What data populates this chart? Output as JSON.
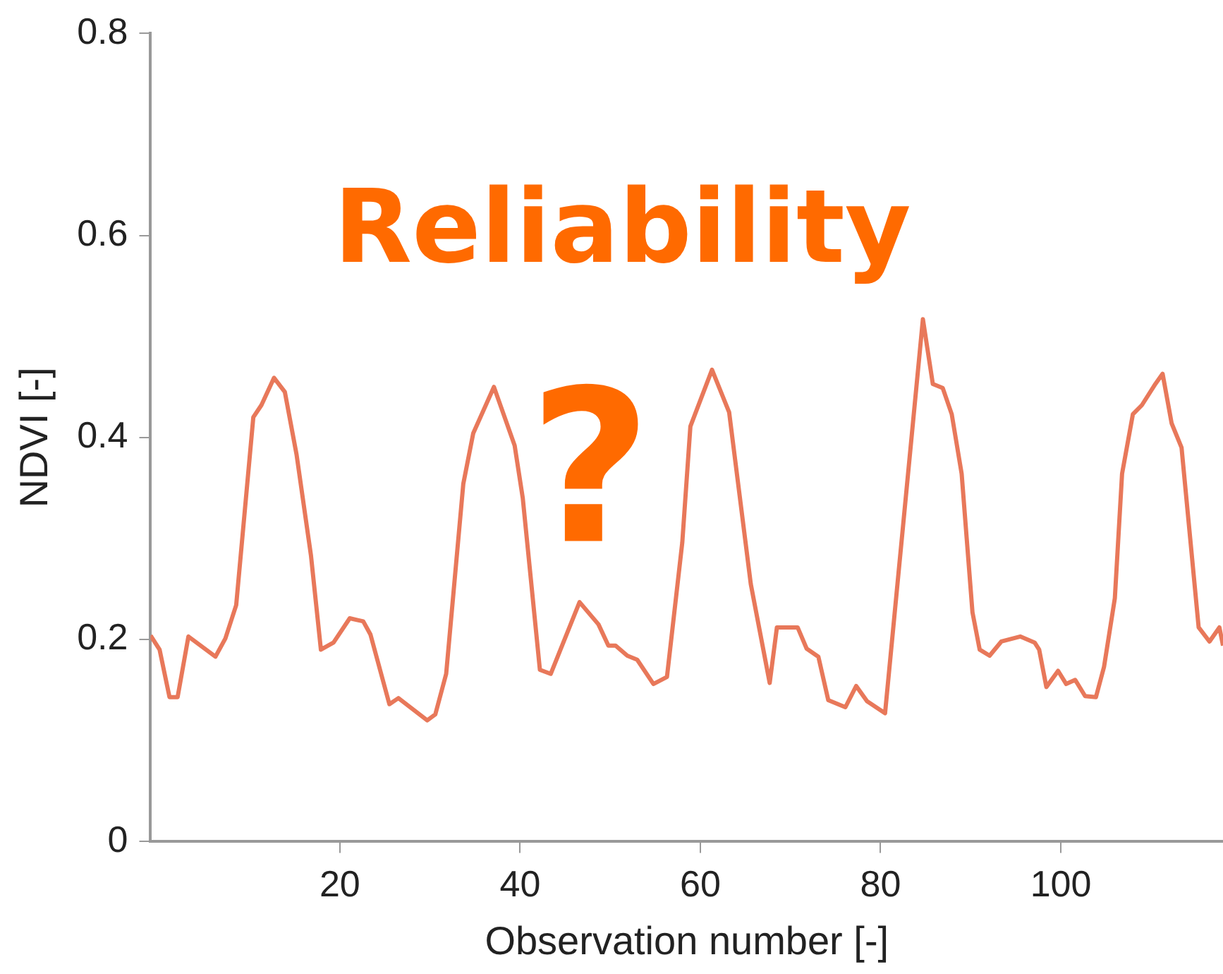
{
  "chart_data": {
    "type": "line",
    "xlabel": "Observation number [-]",
    "ylabel": "NDVI [-]",
    "xlim": [
      -1,
      118
    ],
    "xticks": [
      20,
      40,
      60,
      80,
      100
    ],
    "ylim": [
      0,
      0.8
    ],
    "yticks": [
      0,
      0.2,
      0.4,
      0.6,
      0.8
    ],
    "grid": false,
    "legend": false,
    "marker": "none",
    "line_style": "solid",
    "annotations": [
      "Reliability",
      "?"
    ],
    "series": [
      {
        "color": "#e8785a",
        "x": [
          -1,
          0,
          1.1,
          2,
          3.2,
          6.2,
          7.3,
          8.5,
          10.4,
          11.3,
          12.7,
          13.9,
          15.2,
          16.8,
          17.9,
          19.3,
          21.1,
          22.6,
          23.4,
          25.5,
          26.5,
          29.7,
          30.6,
          31.8,
          33.7,
          34.8,
          37.1,
          39.4,
          40.3,
          42.2,
          43.4,
          46.6,
          48.7,
          49.8,
          50.6,
          51.9,
          53,
          54.8,
          56.3,
          58,
          58.9,
          61.3,
          63.2,
          65.6,
          67.7,
          68.5,
          70.8,
          71.8,
          73.1,
          74.2,
          76.1,
          77.3,
          78.5,
          80.5,
          84.7,
          85.8,
          86.9,
          87.9,
          89,
          90.2,
          91,
          92.1,
          93.4,
          95.5,
          97.1,
          97.6,
          98.4,
          99.7,
          100.6,
          101.6,
          102.7,
          103.9,
          104.8,
          106,
          106.8,
          108,
          109,
          110.5,
          111.3,
          112.3,
          113.4,
          115.3,
          116.5,
          117.6,
          118
        ],
        "values": [
          0.204,
          0.19,
          0.143,
          0.143,
          0.203,
          0.183,
          0.201,
          0.234,
          0.42,
          0.432,
          0.459,
          0.445,
          0.383,
          0.283,
          0.19,
          0.197,
          0.221,
          0.218,
          0.205,
          0.136,
          0.142,
          0.12,
          0.126,
          0.166,
          0.354,
          0.404,
          0.45,
          0.392,
          0.34,
          0.17,
          0.166,
          0.237,
          0.215,
          0.194,
          0.194,
          0.184,
          0.18,
          0.156,
          0.163,
          0.296,
          0.411,
          0.467,
          0.425,
          0.255,
          0.157,
          0.212,
          0.212,
          0.191,
          0.183,
          0.14,
          0.133,
          0.154,
          0.139,
          0.127,
          0.517,
          0.453,
          0.449,
          0.423,
          0.364,
          0.227,
          0.19,
          0.184,
          0.198,
          0.203,
          0.197,
          0.19,
          0.153,
          0.169,
          0.156,
          0.16,
          0.144,
          0.143,
          0.173,
          0.241,
          0.364,
          0.423,
          0.432,
          0.453,
          0.463,
          0.414,
          0.39,
          0.212,
          0.198,
          0.212,
          0.194
        ]
      }
    ]
  }
}
